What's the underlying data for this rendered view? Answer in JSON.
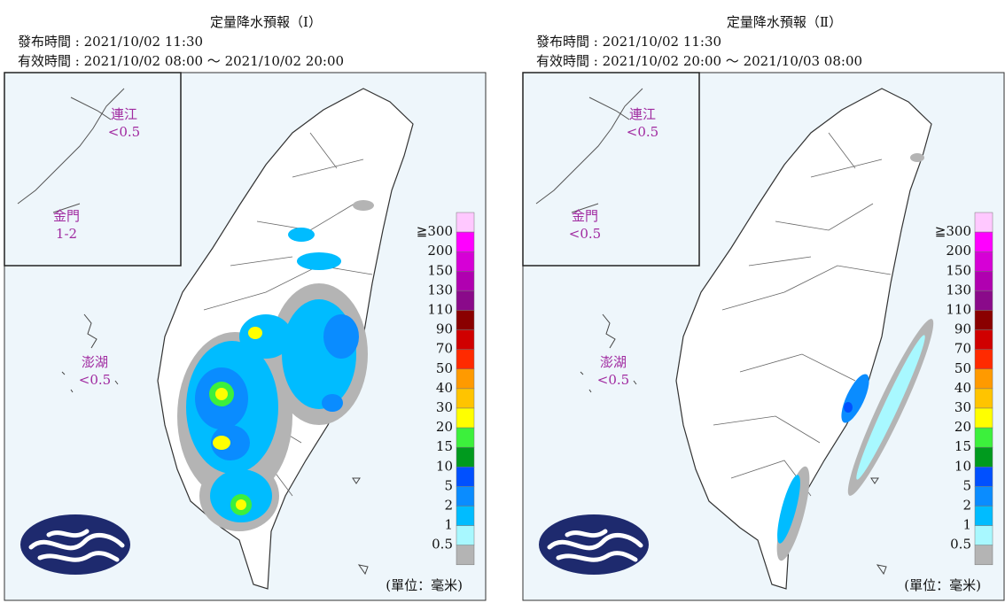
{
  "legend": {
    "labels": [
      "≧300",
      "200",
      "150",
      "130",
      "110",
      "90",
      "70",
      "50",
      "40",
      "30",
      "20",
      "15",
      "10",
      "5",
      "2",
      "1",
      "0.5"
    ],
    "colors": [
      "#ffc8ff",
      "#ff00ff",
      "#d600d6",
      "#b000b0",
      "#8a0a8a",
      "#8a0000",
      "#d00000",
      "#ff2a00",
      "#ff9a00",
      "#ffc400",
      "#ffff00",
      "#3cf03c",
      "#009a1e",
      "#0050ff",
      "#0a8cff",
      "#00bcff",
      "#a8f8ff",
      "#b4b4b4"
    ],
    "unit": "(單位：毫米)"
  },
  "panels": [
    {
      "title": "定量降水預報（Ⅰ）",
      "issued": "發布時間 : 2021/10/02 11:30",
      "valid": "有效時間 : 2021/10/02 08:00 ～ 2021/10/02 20:00",
      "labels": [
        {
          "name": "連江",
          "value": "<0.5"
        },
        {
          "name": "金門",
          "value": "1-2"
        },
        {
          "name": "澎湖",
          "value": "<0.5"
        }
      ]
    },
    {
      "title": "定量降水預報（Ⅱ）",
      "issued": "發布時間 : 2021/10/02 11:30",
      "valid": "有效時間 : 2021/10/02 20:00 ～ 2021/10/03 08:00",
      "labels": [
        {
          "name": "連江",
          "value": "<0.5"
        },
        {
          "name": "金門",
          "value": "<0.5"
        },
        {
          "name": "澎湖",
          "value": "<0.5"
        }
      ]
    }
  ]
}
